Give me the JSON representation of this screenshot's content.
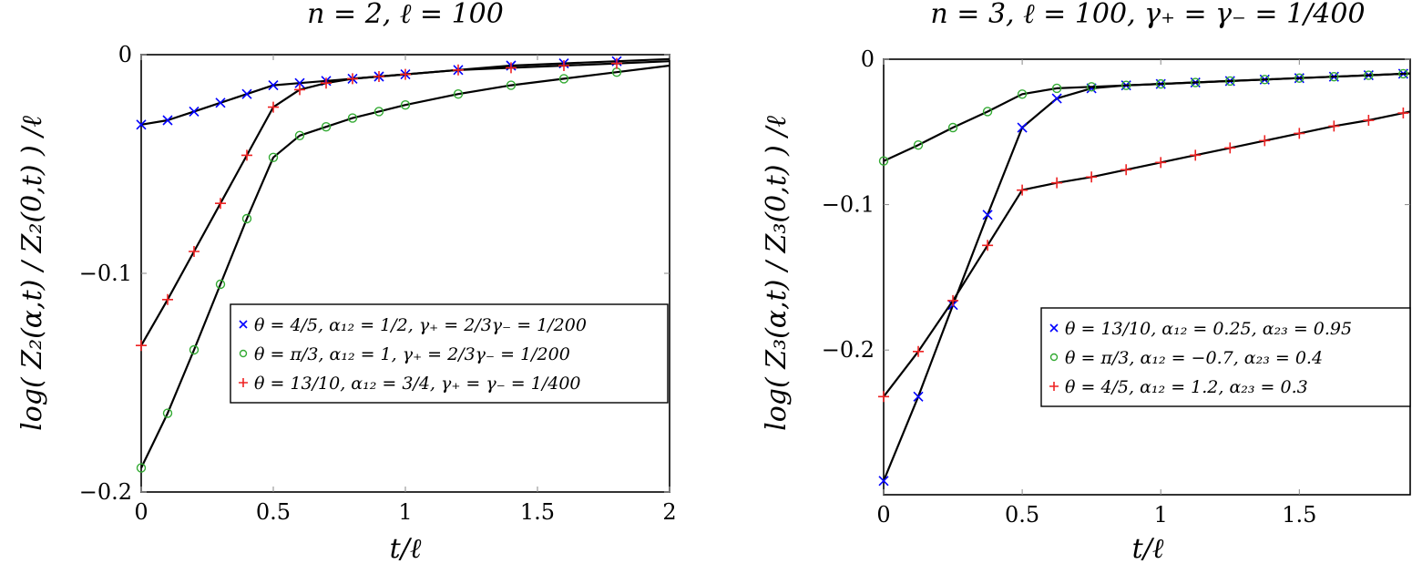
{
  "chart_data": [
    {
      "type": "line",
      "title": "n = 2, ℓ = 100",
      "xlabel": "t/ℓ",
      "ylabel": "log( Z₂(α,t) / Z₂(0,t) ) /ℓ",
      "xlim": [
        0,
        2
      ],
      "ylim": [
        -0.2,
        0
      ],
      "xticks": [
        "0",
        "0.5",
        "1",
        "1.5",
        "2"
      ],
      "yticks": [
        "0",
        "−0.1",
        "−0.2"
      ],
      "legend_position": "center-right",
      "series": [
        {
          "name": "θ = 4/5,  α₁₂ = 1/2,  γ₊ = 2/3γ₋ = 1/200",
          "marker": "x",
          "color": "#0000ff",
          "x": [
            0,
            0.1,
            0.2,
            0.3,
            0.4,
            0.5,
            0.6,
            0.7,
            0.8,
            0.9,
            1.0,
            1.2,
            1.4,
            1.6,
            1.8
          ],
          "y": [
            -0.032,
            -0.03,
            -0.026,
            -0.022,
            -0.018,
            -0.014,
            -0.013,
            -0.012,
            -0.011,
            -0.01,
            -0.009,
            -0.007,
            -0.005,
            -0.004,
            -0.003
          ]
        },
        {
          "name": "θ = π/3,  α₁₂ = 1,  γ₊ = 2/3γ₋ = 1/200",
          "marker": "o",
          "color": "#33aa33",
          "x": [
            0,
            0.1,
            0.2,
            0.3,
            0.4,
            0.5,
            0.6,
            0.7,
            0.8,
            0.9,
            1.0,
            1.2,
            1.4,
            1.6,
            1.8
          ],
          "y": [
            -0.189,
            -0.164,
            -0.135,
            -0.105,
            -0.075,
            -0.047,
            -0.037,
            -0.033,
            -0.029,
            -0.026,
            -0.023,
            -0.018,
            -0.014,
            -0.011,
            -0.008
          ]
        },
        {
          "name": "θ = 13/10,  α₁₂ = 3/4,  γ₊ = γ₋ = 1/400",
          "marker": "+",
          "color": "#ee2222",
          "x": [
            0,
            0.1,
            0.2,
            0.3,
            0.4,
            0.5,
            0.6,
            0.7,
            0.8,
            0.9,
            1.0,
            1.2,
            1.4,
            1.6,
            1.8
          ],
          "y": [
            -0.133,
            -0.112,
            -0.09,
            -0.068,
            -0.046,
            -0.024,
            -0.016,
            -0.013,
            -0.011,
            -0.01,
            -0.009,
            -0.007,
            -0.006,
            -0.005,
            -0.004
          ]
        }
      ]
    },
    {
      "type": "line",
      "title": "n = 3, ℓ = 100, γ₊ = γ₋ = 1/400",
      "xlabel": "t/ℓ",
      "ylabel": "log( Z₃(α,t) / Z₃(0,t) ) /ℓ",
      "xlim": [
        0,
        1.9
      ],
      "ylim": [
        -0.3,
        0
      ],
      "xticks": [
        "0",
        "0.5",
        "1",
        "1.5"
      ],
      "yticks": [
        "0",
        "−0.1",
        "−0.2"
      ],
      "legend_position": "center-right",
      "series": [
        {
          "name": "θ = 13/10,  α₁₂ = 0.25,  α₂₃ = 0.95",
          "marker": "x",
          "color": "#0000ff",
          "x": [
            0,
            0.125,
            0.25,
            0.375,
            0.5,
            0.625,
            0.75,
            0.875,
            1.0,
            1.125,
            1.25,
            1.375,
            1.5,
            1.625,
            1.75,
            1.875
          ],
          "y": [
            -0.29,
            -0.232,
            -0.169,
            -0.107,
            -0.047,
            -0.027,
            -0.02,
            -0.018,
            -0.017,
            -0.016,
            -0.015,
            -0.014,
            -0.013,
            -0.012,
            -0.011,
            -0.01
          ]
        },
        {
          "name": "θ = π/3,  α₁₂ = −0.7,  α₂₃ = 0.4",
          "marker": "o",
          "color": "#33aa33",
          "x": [
            0,
            0.125,
            0.25,
            0.375,
            0.5,
            0.625,
            0.75,
            0.875,
            1.0,
            1.125,
            1.25,
            1.375,
            1.5,
            1.625,
            1.75,
            1.875
          ],
          "y": [
            -0.07,
            -0.059,
            -0.047,
            -0.036,
            -0.024,
            -0.02,
            -0.019,
            -0.018,
            -0.017,
            -0.016,
            -0.015,
            -0.014,
            -0.013,
            -0.012,
            -0.011,
            -0.01
          ]
        },
        {
          "name": "θ = 4/5,  α₁₂ = 1.2,  α₂₃ = 0.3",
          "marker": "+",
          "color": "#ee2222",
          "x": [
            0,
            0.125,
            0.25,
            0.375,
            0.5,
            0.625,
            0.75,
            0.875,
            1.0,
            1.125,
            1.25,
            1.375,
            1.5,
            1.625,
            1.75,
            1.875
          ],
          "y": [
            -0.232,
            -0.201,
            -0.166,
            -0.128,
            -0.09,
            -0.085,
            -0.081,
            -0.076,
            -0.071,
            -0.066,
            -0.061,
            -0.056,
            -0.051,
            -0.046,
            -0.042,
            -0.037
          ]
        }
      ]
    }
  ]
}
